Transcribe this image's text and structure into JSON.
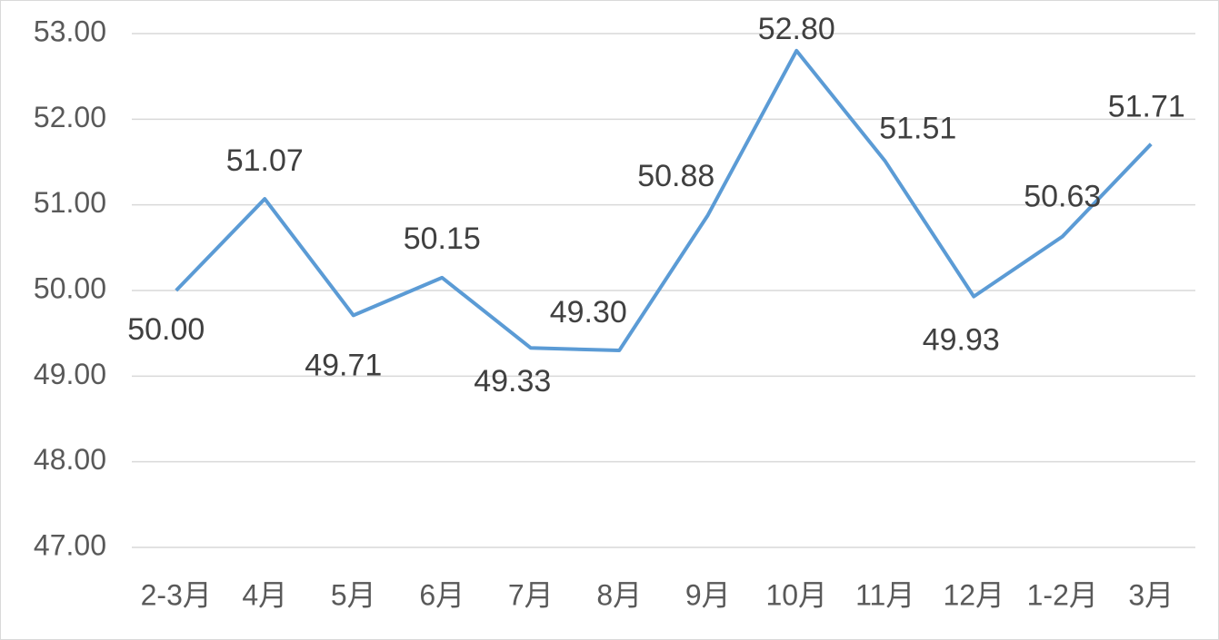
{
  "chart_data": {
    "type": "line",
    "categories": [
      "2-3月",
      "4月",
      "5月",
      "6月",
      "7月",
      "8月",
      "9月",
      "10月",
      "11月",
      "12月",
      "1-2月",
      "3月"
    ],
    "series": [
      {
        "color": "#5b9bd5",
        "values": [
          50.0,
          51.07,
          49.71,
          50.15,
          49.33,
          49.3,
          50.88,
          52.8,
          51.51,
          49.93,
          50.63,
          51.71
        ],
        "value_labels": [
          "50.00",
          "51.07",
          "49.71",
          "50.15",
          "49.33",
          "49.30",
          "50.88",
          "52.80",
          "51.51",
          "49.93",
          "50.63",
          "51.71"
        ]
      }
    ],
    "ylim": [
      47,
      53
    ],
    "yticks": [
      {
        "value": 47,
        "label": "47.00"
      },
      {
        "value": 48,
        "label": "48.00"
      },
      {
        "value": 49,
        "label": "49.00"
      },
      {
        "value": 50,
        "label": "50.00"
      },
      {
        "value": 51,
        "label": "51.00"
      },
      {
        "value": 52,
        "label": "52.00"
      },
      {
        "value": 53,
        "label": "53.00"
      }
    ],
    "grid": true
  }
}
